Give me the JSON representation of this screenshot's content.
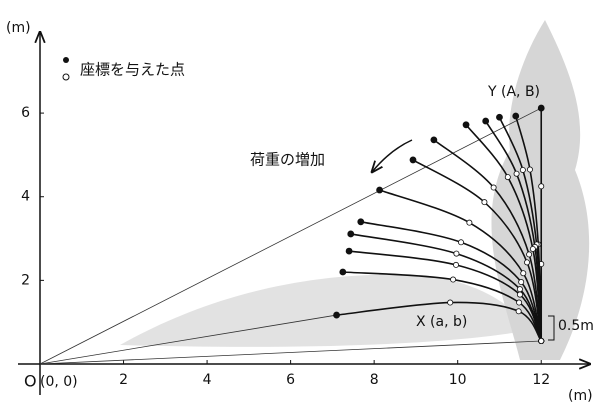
{
  "chart_data": {
    "type": "line",
    "x_unit": "(m)",
    "y_unit": "(m)",
    "origin_label": "O",
    "origin_coord": "(0, 0)",
    "legend": "座標を与えた点",
    "annotations": {
      "top_point": "Y (A, B)",
      "low_point": "X (a, b)",
      "base_height": "0.5m",
      "load_arrow": "荷重の増加"
    },
    "xlim": [
      0,
      13
    ],
    "ylim": [
      0,
      7.7
    ],
    "xticks": [
      2,
      4,
      6,
      8,
      10,
      12
    ],
    "yticks": [
      2,
      4,
      6
    ],
    "color": "#111111",
    "series": [
      {
        "x": [
          12.0,
          12.0,
          12.0,
          12.0
        ],
        "y": [
          6.12,
          4.25,
          2.39,
          0.55
        ]
      },
      {
        "x": [
          11.39,
          11.73,
          11.93,
          12.0
        ],
        "y": [
          5.93,
          4.65,
          2.86,
          0.55
        ]
      },
      {
        "x": [
          11.0,
          11.56,
          11.89,
          12.0
        ],
        "y": [
          5.9,
          4.64,
          2.86,
          0.55
        ]
      },
      {
        "x": [
          10.67,
          11.41,
          11.85,
          12.0
        ],
        "y": [
          5.81,
          4.55,
          2.8,
          0.55
        ]
      },
      {
        "x": [
          10.2,
          11.2,
          11.8,
          12.0
        ],
        "y": [
          5.72,
          4.47,
          2.75,
          0.55
        ]
      },
      {
        "x": [
          9.43,
          10.86,
          11.71,
          12.0
        ],
        "y": [
          5.36,
          4.22,
          2.62,
          0.55
        ]
      },
      {
        "x": [
          8.93,
          10.64,
          11.66,
          12.0
        ],
        "y": [
          4.88,
          3.87,
          2.43,
          0.55
        ]
      },
      {
        "x": [
          8.13,
          10.28,
          11.57,
          12.0
        ],
        "y": [
          4.16,
          3.38,
          2.17,
          0.55
        ]
      },
      {
        "x": [
          7.68,
          10.08,
          11.52,
          12.0
        ],
        "y": [
          3.4,
          2.91,
          1.96,
          0.55
        ]
      },
      {
        "x": [
          7.44,
          9.97,
          11.49,
          12.0
        ],
        "y": [
          3.11,
          2.64,
          1.79,
          0.55
        ]
      },
      {
        "x": [
          7.4,
          9.96,
          11.49,
          12.0
        ],
        "y": [
          2.7,
          2.37,
          1.66,
          0.55
        ]
      },
      {
        "x": [
          7.25,
          9.89,
          11.47,
          12.0
        ],
        "y": [
          2.2,
          2.02,
          1.47,
          0.55
        ]
      },
      {
        "x": [
          7.1,
          9.82,
          11.46,
          12.0
        ],
        "y": [
          1.17,
          1.47,
          1.26,
          0.55
        ]
      }
    ]
  }
}
